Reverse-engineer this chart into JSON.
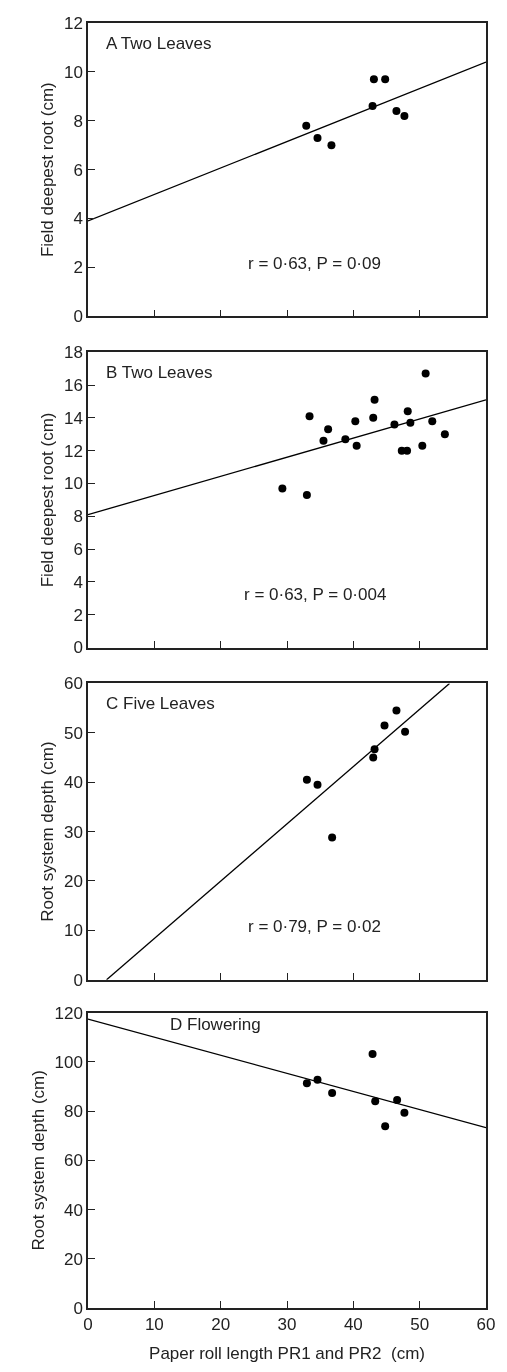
{
  "chart_data": [
    {
      "type": "scatter",
      "title": "A Two Leaves",
      "ylabel": "Field deepest root (cm)",
      "annotations": [
        "r = 0·63, P = 0·09"
      ],
      "xlim": [
        0,
        60
      ],
      "xticks": [
        0,
        10,
        20,
        30,
        40,
        50,
        60
      ],
      "ylim": [
        0,
        12
      ],
      "yticks": [
        0,
        2,
        4,
        6,
        8,
        10,
        12
      ],
      "tick_labels": "y",
      "marker": "circle",
      "series": [
        {
          "color": "#000000",
          "x": [
            32.9,
            34.6,
            36.7,
            42.9,
            43.1,
            44.8,
            46.5,
            47.7
          ],
          "values": [
            7.8,
            7.3,
            7.0,
            8.6,
            9.7,
            9.7,
            8.4,
            8.2
          ]
        },
        {
          "type": "line",
          "color": "#000000",
          "marker": "none",
          "line_style": "solid",
          "x": [
            0,
            60
          ],
          "values": [
            3.9,
            10.4
          ]
        }
      ]
    },
    {
      "type": "scatter",
      "title": "B Two Leaves",
      "ylabel": "Field deepest root (cm)",
      "annotations": [
        "r = 0·63, P = 0·004"
      ],
      "xlim": [
        0,
        60
      ],
      "xticks": [
        0,
        10,
        20,
        30,
        40,
        50,
        60
      ],
      "ylim": [
        0,
        18
      ],
      "yticks": [
        0,
        2,
        4,
        6,
        8,
        10,
        12,
        14,
        16,
        18
      ],
      "tick_labels": "y",
      "marker": "circle",
      "series": [
        {
          "color": "#000000",
          "x": [
            29.3,
            33.0,
            33.4,
            35.5,
            36.2,
            38.8,
            40.3,
            40.5,
            43.0,
            43.2,
            46.2,
            47.3,
            48.1,
            48.2,
            48.6,
            50.4,
            50.9,
            51.9,
            53.8
          ],
          "values": [
            9.7,
            9.3,
            14.1,
            12.6,
            13.3,
            12.7,
            13.8,
            12.3,
            14.0,
            15.1,
            13.6,
            12.0,
            12.0,
            14.4,
            13.7,
            12.3,
            16.7,
            13.8,
            13.0
          ]
        },
        {
          "type": "line",
          "color": "#000000",
          "marker": "none",
          "line_style": "solid",
          "x": [
            0,
            60
          ],
          "values": [
            8.1,
            15.1
          ]
        }
      ]
    },
    {
      "type": "scatter",
      "title": "C Five Leaves",
      "ylabel": "Root system depth (cm)",
      "annotations": [
        "r = 0·79, P = 0·02"
      ],
      "xlim": [
        0,
        60
      ],
      "xticks": [
        0,
        10,
        20,
        30,
        40,
        50,
        60
      ],
      "ylim": [
        0,
        60
      ],
      "yticks": [
        0,
        10,
        20,
        30,
        40,
        50,
        60
      ],
      "tick_labels": "y",
      "marker": "circle",
      "series": [
        {
          "color": "#000000",
          "x": [
            33.0,
            34.6,
            36.8,
            43.0,
            43.2,
            44.7,
            46.5,
            47.8
          ],
          "values": [
            40.5,
            39.5,
            28.8,
            45.0,
            46.7,
            51.5,
            54.5,
            50.2
          ]
        },
        {
          "type": "line",
          "color": "#000000",
          "marker": "none",
          "line_style": "solid",
          "x": [
            2.8,
            54.5
          ],
          "values": [
            0,
            60
          ]
        }
      ]
    },
    {
      "type": "scatter",
      "title": "D Flowering",
      "xlabel": "Paper roll length PR1 and PR2  (cm)",
      "ylabel": "Root system depth (cm)",
      "xlim": [
        0,
        60
      ],
      "xticks": [
        0,
        10,
        20,
        30,
        40,
        50,
        60
      ],
      "ylim": [
        0,
        120
      ],
      "yticks": [
        0,
        20,
        40,
        60,
        80,
        100,
        120
      ],
      "marker": "circle",
      "series": [
        {
          "color": "#000000",
          "x": [
            33.0,
            34.6,
            36.8,
            42.9,
            43.3,
            44.8,
            46.6,
            47.7
          ],
          "values": [
            91.3,
            92.7,
            87.4,
            103.2,
            84.0,
            73.9,
            84.5,
            79.3
          ]
        },
        {
          "type": "line",
          "color": "#000000",
          "marker": "none",
          "line_style": "solid",
          "x": [
            0,
            60
          ],
          "values": [
            117.4,
            73.3
          ]
        }
      ]
    }
  ]
}
